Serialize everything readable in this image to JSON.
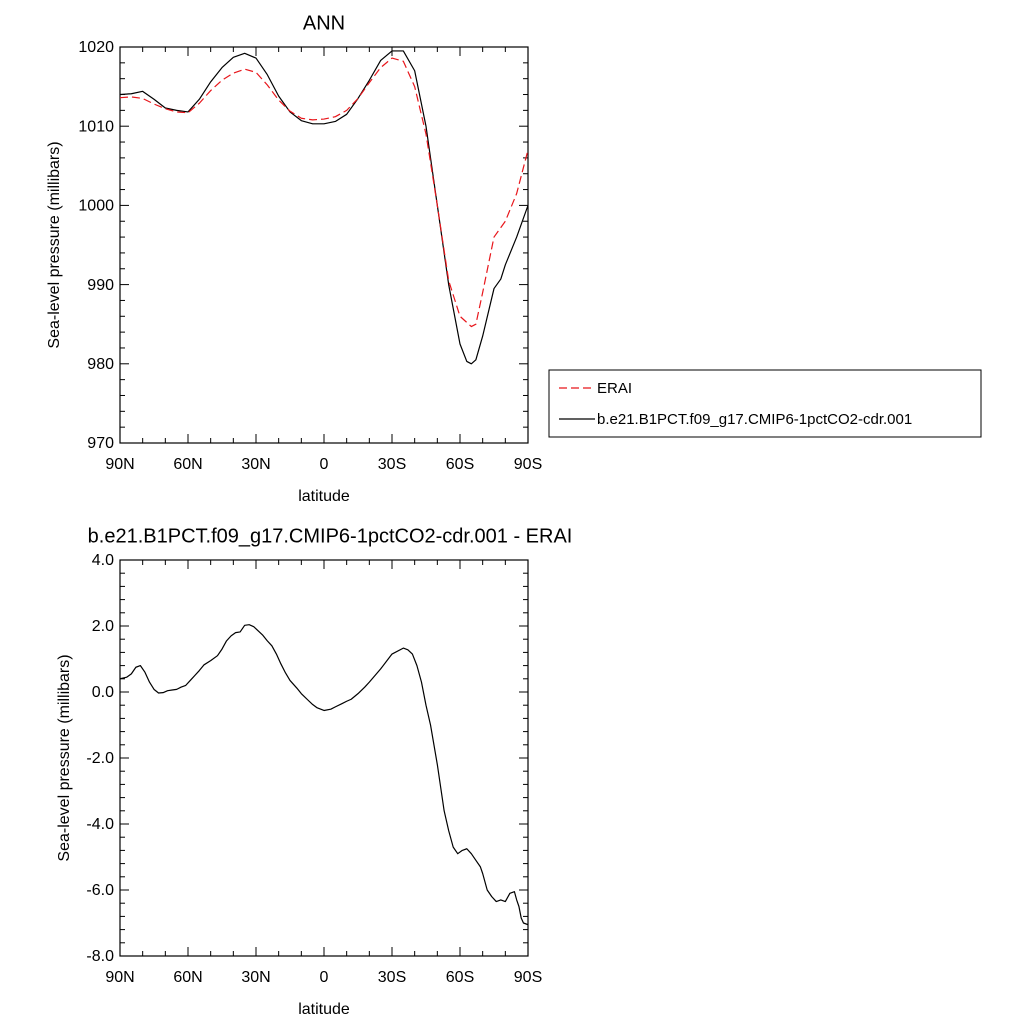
{
  "chart_data": [
    {
      "type": "line",
      "title": "ANN",
      "xlabel": "latitude",
      "ylabel": "Sea-level pressure (millibars)",
      "x_ticks": [
        "90N",
        "60N",
        "30N",
        "0",
        "30S",
        "60S",
        "90S"
      ],
      "y_ticks": [
        "970",
        "980",
        "990",
        "1000",
        "1010",
        "1020"
      ],
      "xlim": [
        90,
        -90
      ],
      "ylim": [
        970,
        1020
      ],
      "legend_position": "right",
      "series": [
        {
          "name": "ERAI",
          "color": "#e8161b",
          "style": "dashed",
          "x": [
            90,
            85,
            80,
            75,
            70,
            65,
            60,
            55,
            50,
            45,
            40,
            35,
            30,
            25,
            20,
            15,
            10,
            5,
            0,
            -5,
            -10,
            -15,
            -20,
            -25,
            -30,
            -35,
            -40,
            -45,
            -50,
            -55,
            -60,
            -65,
            -67,
            -70,
            -75,
            -80,
            -85,
            -90
          ],
          "y": [
            1013.6,
            1013.7,
            1013.5,
            1012.8,
            1012.2,
            1011.8,
            1011.7,
            1012.9,
            1014.5,
            1015.8,
            1016.7,
            1017.2,
            1016.8,
            1015.2,
            1013.3,
            1011.9,
            1011.0,
            1010.8,
            1010.9,
            1011.2,
            1012.0,
            1013.5,
            1015.5,
            1017.4,
            1018.6,
            1018.2,
            1015.0,
            1009.0,
            1000.0,
            990.5,
            986.0,
            984.7,
            985.0,
            989.0,
            996.0,
            998.0,
            1001.5,
            1007.0
          ]
        },
        {
          "name": "b.e21.B1PCT.f09_g17.CMIP6-1pctCO2-cdr.001",
          "color": "#000000",
          "style": "solid",
          "x": [
            90,
            85,
            80,
            75,
            70,
            65,
            60,
            55,
            50,
            45,
            40,
            35,
            30,
            25,
            20,
            15,
            10,
            5,
            0,
            -5,
            -10,
            -15,
            -20,
            -25,
            -30,
            -35,
            -40,
            -45,
            -50,
            -55,
            -60,
            -63,
            -65,
            -67,
            -70,
            -75,
            -78,
            -80,
            -85,
            -90
          ],
          "y": [
            1014.0,
            1014.1,
            1014.4,
            1013.4,
            1012.3,
            1012.0,
            1011.8,
            1013.4,
            1015.6,
            1017.4,
            1018.7,
            1019.2,
            1018.6,
            1016.5,
            1013.8,
            1011.8,
            1010.7,
            1010.3,
            1010.3,
            1010.6,
            1011.5,
            1013.5,
            1015.8,
            1018.3,
            1019.5,
            1019.5,
            1017.0,
            1010.0,
            1000.0,
            990.0,
            982.5,
            980.3,
            980.0,
            980.5,
            983.5,
            989.5,
            990.7,
            992.5,
            996.0,
            1000.0
          ]
        }
      ]
    },
    {
      "type": "line",
      "title": "b.e21.B1PCT.f09_g17.CMIP6-1pctCO2-cdr.001 - ERAI",
      "xlabel": "latitude",
      "ylabel": "Sea-level pressure (millibars)",
      "x_ticks": [
        "90N",
        "60N",
        "30N",
        "0",
        "30S",
        "60S",
        "90S"
      ],
      "y_ticks": [
        "-8.0",
        "-6.0",
        "-4.0",
        "-2.0",
        "0.0",
        "2.0",
        "4.0"
      ],
      "xlim": [
        90,
        -90
      ],
      "ylim": [
        -8,
        4
      ],
      "series": [
        {
          "color": "#000000",
          "style": "solid",
          "x": [
            90,
            87,
            85,
            83,
            81,
            79,
            77,
            75,
            73,
            71,
            69,
            67,
            65,
            63,
            61,
            59,
            57,
            55,
            53,
            50,
            47,
            45,
            43,
            41,
            39,
            37,
            35,
            33,
            31,
            29,
            27,
            25,
            23,
            21,
            19,
            17,
            15,
            12,
            10,
            7,
            5,
            3,
            0,
            -3,
            -5,
            -8,
            -10,
            -12,
            -15,
            -18,
            -20,
            -25,
            -30,
            -35,
            -37,
            -39,
            -41,
            -43,
            -45,
            -47,
            -50,
            -53,
            -55,
            -57,
            -59,
            -61,
            -63,
            -65,
            -67,
            -69,
            -70,
            -72,
            -74,
            -76,
            -78,
            -80,
            -82,
            -84,
            -85,
            -86,
            -87,
            -88,
            -90
          ],
          "y": [
            0.4,
            0.45,
            0.55,
            0.75,
            0.8,
            0.6,
            0.3,
            0.08,
            -0.03,
            -0.02,
            0.04,
            0.06,
            0.08,
            0.15,
            0.2,
            0.35,
            0.5,
            0.65,
            0.82,
            0.95,
            1.1,
            1.3,
            1.55,
            1.7,
            1.8,
            1.82,
            2.02,
            2.04,
            1.98,
            1.85,
            1.72,
            1.55,
            1.4,
            1.15,
            0.85,
            0.58,
            0.35,
            0.12,
            -0.05,
            -0.25,
            -0.38,
            -0.48,
            -0.56,
            -0.52,
            -0.45,
            -0.35,
            -0.28,
            -0.22,
            -0.05,
            0.15,
            0.3,
            0.7,
            1.15,
            1.33,
            1.28,
            1.15,
            0.8,
            0.3,
            -0.4,
            -1.0,
            -2.2,
            -3.6,
            -4.2,
            -4.7,
            -4.9,
            -4.8,
            -4.75,
            -4.9,
            -5.1,
            -5.3,
            -5.5,
            -6.0,
            -6.2,
            -6.35,
            -6.3,
            -6.35,
            -6.1,
            -6.05,
            -6.3,
            -6.5,
            -6.85,
            -7.0,
            -7.05
          ]
        }
      ]
    }
  ]
}
